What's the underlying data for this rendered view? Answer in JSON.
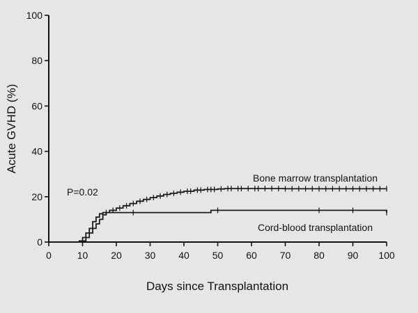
{
  "chart_data": {
    "type": "line",
    "title": "",
    "xlabel": "Days since Transplantation",
    "ylabel": "Acute GVHD (%)",
    "xlim": [
      0,
      100
    ],
    "ylim": [
      0,
      100
    ],
    "x_ticks": [
      0,
      10,
      20,
      30,
      40,
      50,
      60,
      70,
      80,
      90,
      100
    ],
    "y_ticks": [
      0,
      20,
      40,
      60,
      80,
      100
    ],
    "grid": false,
    "annotation": "P=0.02",
    "series": [
      {
        "name": "Bone marrow transplantation",
        "color": "#1a1a1a",
        "points": [
          [
            0,
            0
          ],
          [
            9,
            0.5
          ],
          [
            10,
            2
          ],
          [
            11,
            4
          ],
          [
            12,
            6
          ],
          [
            13,
            9
          ],
          [
            14,
            11
          ],
          [
            15,
            12.5
          ],
          [
            16,
            13
          ],
          [
            18,
            14
          ],
          [
            20,
            15
          ],
          [
            22,
            16
          ],
          [
            24,
            17
          ],
          [
            26,
            18
          ],
          [
            28,
            18.8
          ],
          [
            30,
            19.6
          ],
          [
            32,
            20.3
          ],
          [
            34,
            21
          ],
          [
            36,
            21.5
          ],
          [
            38,
            22
          ],
          [
            40,
            22.4
          ],
          [
            43,
            22.9
          ],
          [
            46,
            23.2
          ],
          [
            50,
            23.4
          ],
          [
            52,
            23.6
          ],
          [
            60,
            23.6
          ],
          [
            70,
            23.5
          ],
          [
            80,
            23.5
          ],
          [
            90,
            23.5
          ],
          [
            100,
            23.5
          ]
        ]
      },
      {
        "name": "Cord-blood transplantation",
        "color": "#1a1a1a",
        "points": [
          [
            0,
            0
          ],
          [
            10,
            0.5
          ],
          [
            11,
            2
          ],
          [
            12,
            4
          ],
          [
            13,
            6
          ],
          [
            14,
            8
          ],
          [
            15,
            10
          ],
          [
            16,
            12
          ],
          [
            17,
            13
          ],
          [
            30,
            13
          ],
          [
            47,
            13
          ],
          [
            48,
            14
          ],
          [
            100,
            13
          ]
        ]
      }
    ],
    "censor_marks": {
      "bone_marrow": [
        17,
        19,
        21,
        23,
        25,
        27,
        29,
        31,
        33,
        35,
        37,
        39,
        41,
        42,
        44,
        45,
        47,
        48,
        49,
        51,
        53,
        54,
        56,
        57,
        59,
        61,
        62,
        64,
        66,
        68,
        70,
        72,
        74,
        76,
        78,
        80,
        82,
        84,
        86,
        88,
        90,
        92,
        94,
        96,
        98,
        100
      ],
      "cord_blood": [
        25,
        50,
        80,
        90,
        100
      ]
    }
  }
}
